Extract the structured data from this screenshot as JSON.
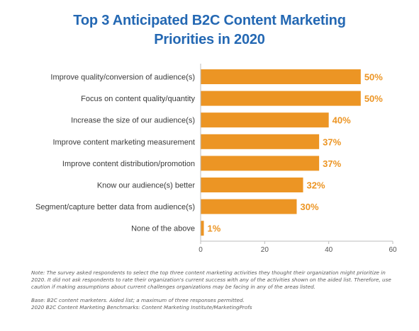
{
  "title_lines": [
    "Top 3 Anticipated B2C Content Marketing",
    "Priorities in 2020"
  ],
  "colors": {
    "title": "#2468b3",
    "bar": "#ec9524",
    "value_label": "#ec9524",
    "axis": "#bdbdbd",
    "category_text": "#3a3a3a",
    "note_text": "#5b5b5b"
  },
  "chart_data": {
    "type": "bar",
    "orientation": "horizontal",
    "title": "Top 3 Anticipated B2C Content Marketing Priorities in 2020",
    "categories": [
      "Improve quality/conversion of audience(s)",
      "Focus on content quality/quantity",
      "Increase the size of our audience(s)",
      "Improve content marketing measurement",
      "Improve content distribution/promotion",
      "Know our audience(s) better",
      "Segment/capture better data from audience(s)",
      "None of the above"
    ],
    "values": [
      50,
      50,
      40,
      37,
      37,
      32,
      30,
      1
    ],
    "value_labels": [
      "50%",
      "50%",
      "40%",
      "37%",
      "37%",
      "32%",
      "30%",
      "1%"
    ],
    "xlim": [
      0,
      60
    ],
    "xticks": [
      0,
      20,
      40,
      60
    ],
    "xtick_labels": [
      "0",
      "20",
      "40",
      "60"
    ],
    "grid": false,
    "legend": "none"
  },
  "notes": {
    "note": "Note: The survey asked respondents to select the top three content marketing activities they thought their organization might prioritize in 2020. It did not ask respondents to rate their organization's current success with any of the activities shown on the aided list. Therefore, use caution if making assumptions about current challenges organizations may be facing in any of the areas listed.",
    "base": "Base: B2C content marketers. Aided list; a maximum of three responses permitted.",
    "source": "2020 B2C Content Marketing Benchmarks: Content Marketing Institute/MarketingProfs"
  }
}
